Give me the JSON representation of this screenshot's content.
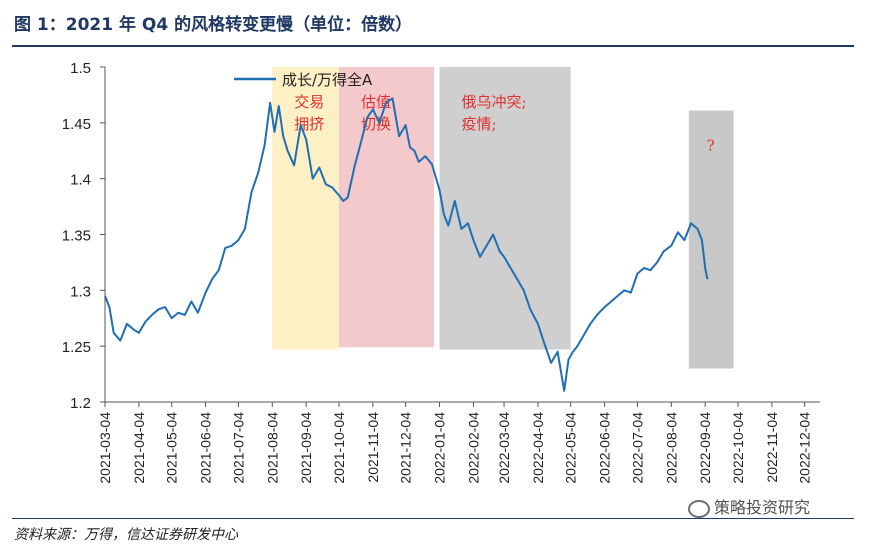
{
  "figure": {
    "title": "图 1：2021 年 Q4 的风格转变更慢（单位：倍数）",
    "source": "资料来源：万得，信达证券研发中心",
    "watermark": "策略投资研究"
  },
  "chart_data": {
    "type": "line",
    "ylim": [
      1.2,
      1.5
    ],
    "yticks": [
      1.2,
      1.25,
      1.3,
      1.35,
      1.4,
      1.45,
      1.5
    ],
    "xlim": [
      "2021-03-04",
      "2022-12-18"
    ],
    "xticks": [
      "2021-03-04",
      "2021-04-04",
      "2021-05-04",
      "2021-06-04",
      "2021-07-04",
      "2021-08-04",
      "2021-09-04",
      "2021-10-04",
      "2021-11-04",
      "2021-12-04",
      "2022-01-04",
      "2022-02-04",
      "2022-03-04",
      "2022-04-04",
      "2022-05-04",
      "2022-06-04",
      "2022-07-04",
      "2022-08-04",
      "2022-09-04",
      "2022-10-04",
      "2022-11-04",
      "2022-12-04"
    ],
    "legend": "top-left",
    "grid": false,
    "series": [
      {
        "name": "成长/万得全A",
        "color": "#1f6fb2",
        "x": [
          "2021-03-04",
          "2021-03-08",
          "2021-03-12",
          "2021-03-18",
          "2021-03-24",
          "2021-03-30",
          "2021-04-04",
          "2021-04-10",
          "2021-04-16",
          "2021-04-22",
          "2021-04-28",
          "2021-05-04",
          "2021-05-10",
          "2021-05-16",
          "2021-05-22",
          "2021-05-28",
          "2021-06-04",
          "2021-06-10",
          "2021-06-16",
          "2021-06-22",
          "2021-06-28",
          "2021-07-04",
          "2021-07-10",
          "2021-07-16",
          "2021-07-22",
          "2021-07-28",
          "2021-08-02",
          "2021-08-06",
          "2021-08-10",
          "2021-08-14",
          "2021-08-18",
          "2021-08-24",
          "2021-08-30",
          "2021-09-04",
          "2021-09-10",
          "2021-09-16",
          "2021-09-22",
          "2021-09-28",
          "2021-10-04",
          "2021-10-08",
          "2021-10-12",
          "2021-10-18",
          "2021-10-24",
          "2021-10-30",
          "2021-11-04",
          "2021-11-10",
          "2021-11-16",
          "2021-11-22",
          "2021-11-28",
          "2021-12-04",
          "2021-12-08",
          "2021-12-12",
          "2021-12-16",
          "2021-12-22",
          "2021-12-28",
          "2022-01-04",
          "2022-01-08",
          "2022-01-12",
          "2022-01-18",
          "2022-01-24",
          "2022-01-30",
          "2022-02-04",
          "2022-02-10",
          "2022-02-16",
          "2022-02-22",
          "2022-02-28",
          "2022-03-04",
          "2022-03-10",
          "2022-03-16",
          "2022-03-22",
          "2022-03-28",
          "2022-04-04",
          "2022-04-10",
          "2022-04-16",
          "2022-04-22",
          "2022-04-28",
          "2022-05-02",
          "2022-05-06",
          "2022-05-10",
          "2022-05-16",
          "2022-05-22",
          "2022-05-28",
          "2022-06-04",
          "2022-06-10",
          "2022-06-16",
          "2022-06-22",
          "2022-06-28",
          "2022-07-04",
          "2022-07-10",
          "2022-07-16",
          "2022-07-22",
          "2022-07-28",
          "2022-08-04",
          "2022-08-10",
          "2022-08-16",
          "2022-08-22",
          "2022-08-28",
          "2022-09-01",
          "2022-09-04",
          "2022-09-06"
        ],
        "y": [
          1.295,
          1.285,
          1.262,
          1.255,
          1.27,
          1.265,
          1.262,
          1.272,
          1.278,
          1.283,
          1.285,
          1.275,
          1.28,
          1.278,
          1.29,
          1.28,
          1.298,
          1.31,
          1.318,
          1.338,
          1.34,
          1.345,
          1.355,
          1.388,
          1.405,
          1.43,
          1.468,
          1.442,
          1.465,
          1.438,
          1.425,
          1.412,
          1.448,
          1.435,
          1.4,
          1.41,
          1.395,
          1.392,
          1.385,
          1.38,
          1.383,
          1.41,
          1.432,
          1.455,
          1.462,
          1.45,
          1.468,
          1.472,
          1.438,
          1.448,
          1.428,
          1.425,
          1.415,
          1.42,
          1.413,
          1.39,
          1.368,
          1.358,
          1.38,
          1.355,
          1.36,
          1.345,
          1.33,
          1.34,
          1.35,
          1.335,
          1.33,
          1.32,
          1.31,
          1.3,
          1.283,
          1.27,
          1.252,
          1.235,
          1.245,
          1.21,
          1.238,
          1.245,
          1.25,
          1.26,
          1.27,
          1.278,
          1.285,
          1.29,
          1.295,
          1.3,
          1.298,
          1.315,
          1.32,
          1.318,
          1.325,
          1.335,
          1.34,
          1.352,
          1.345,
          1.36,
          1.355,
          1.345,
          1.32,
          1.31
        ]
      }
    ],
    "shaded_regions": [
      {
        "start": "2021-08-04",
        "end": "2021-10-04",
        "ymin": 1.247,
        "ymax": 1.5,
        "color": "#fdf0c4",
        "label": "交易\n拥挤"
      },
      {
        "start": "2021-10-04",
        "end": "2021-12-30",
        "ymin": 1.249,
        "ymax": 1.5,
        "color": "#f4c9cb",
        "label": "估值\n切换"
      },
      {
        "start": "2022-01-04",
        "end": "2022-05-04",
        "ymin": 1.247,
        "ymax": 1.5,
        "color": "#cfcfcf",
        "label": "俄乌冲突;\n疫情;"
      },
      {
        "start": "2022-08-20",
        "end": "2022-09-30",
        "ymin": 1.23,
        "ymax": 1.461,
        "color": "#c8c8c8",
        "label": "?"
      }
    ]
  }
}
